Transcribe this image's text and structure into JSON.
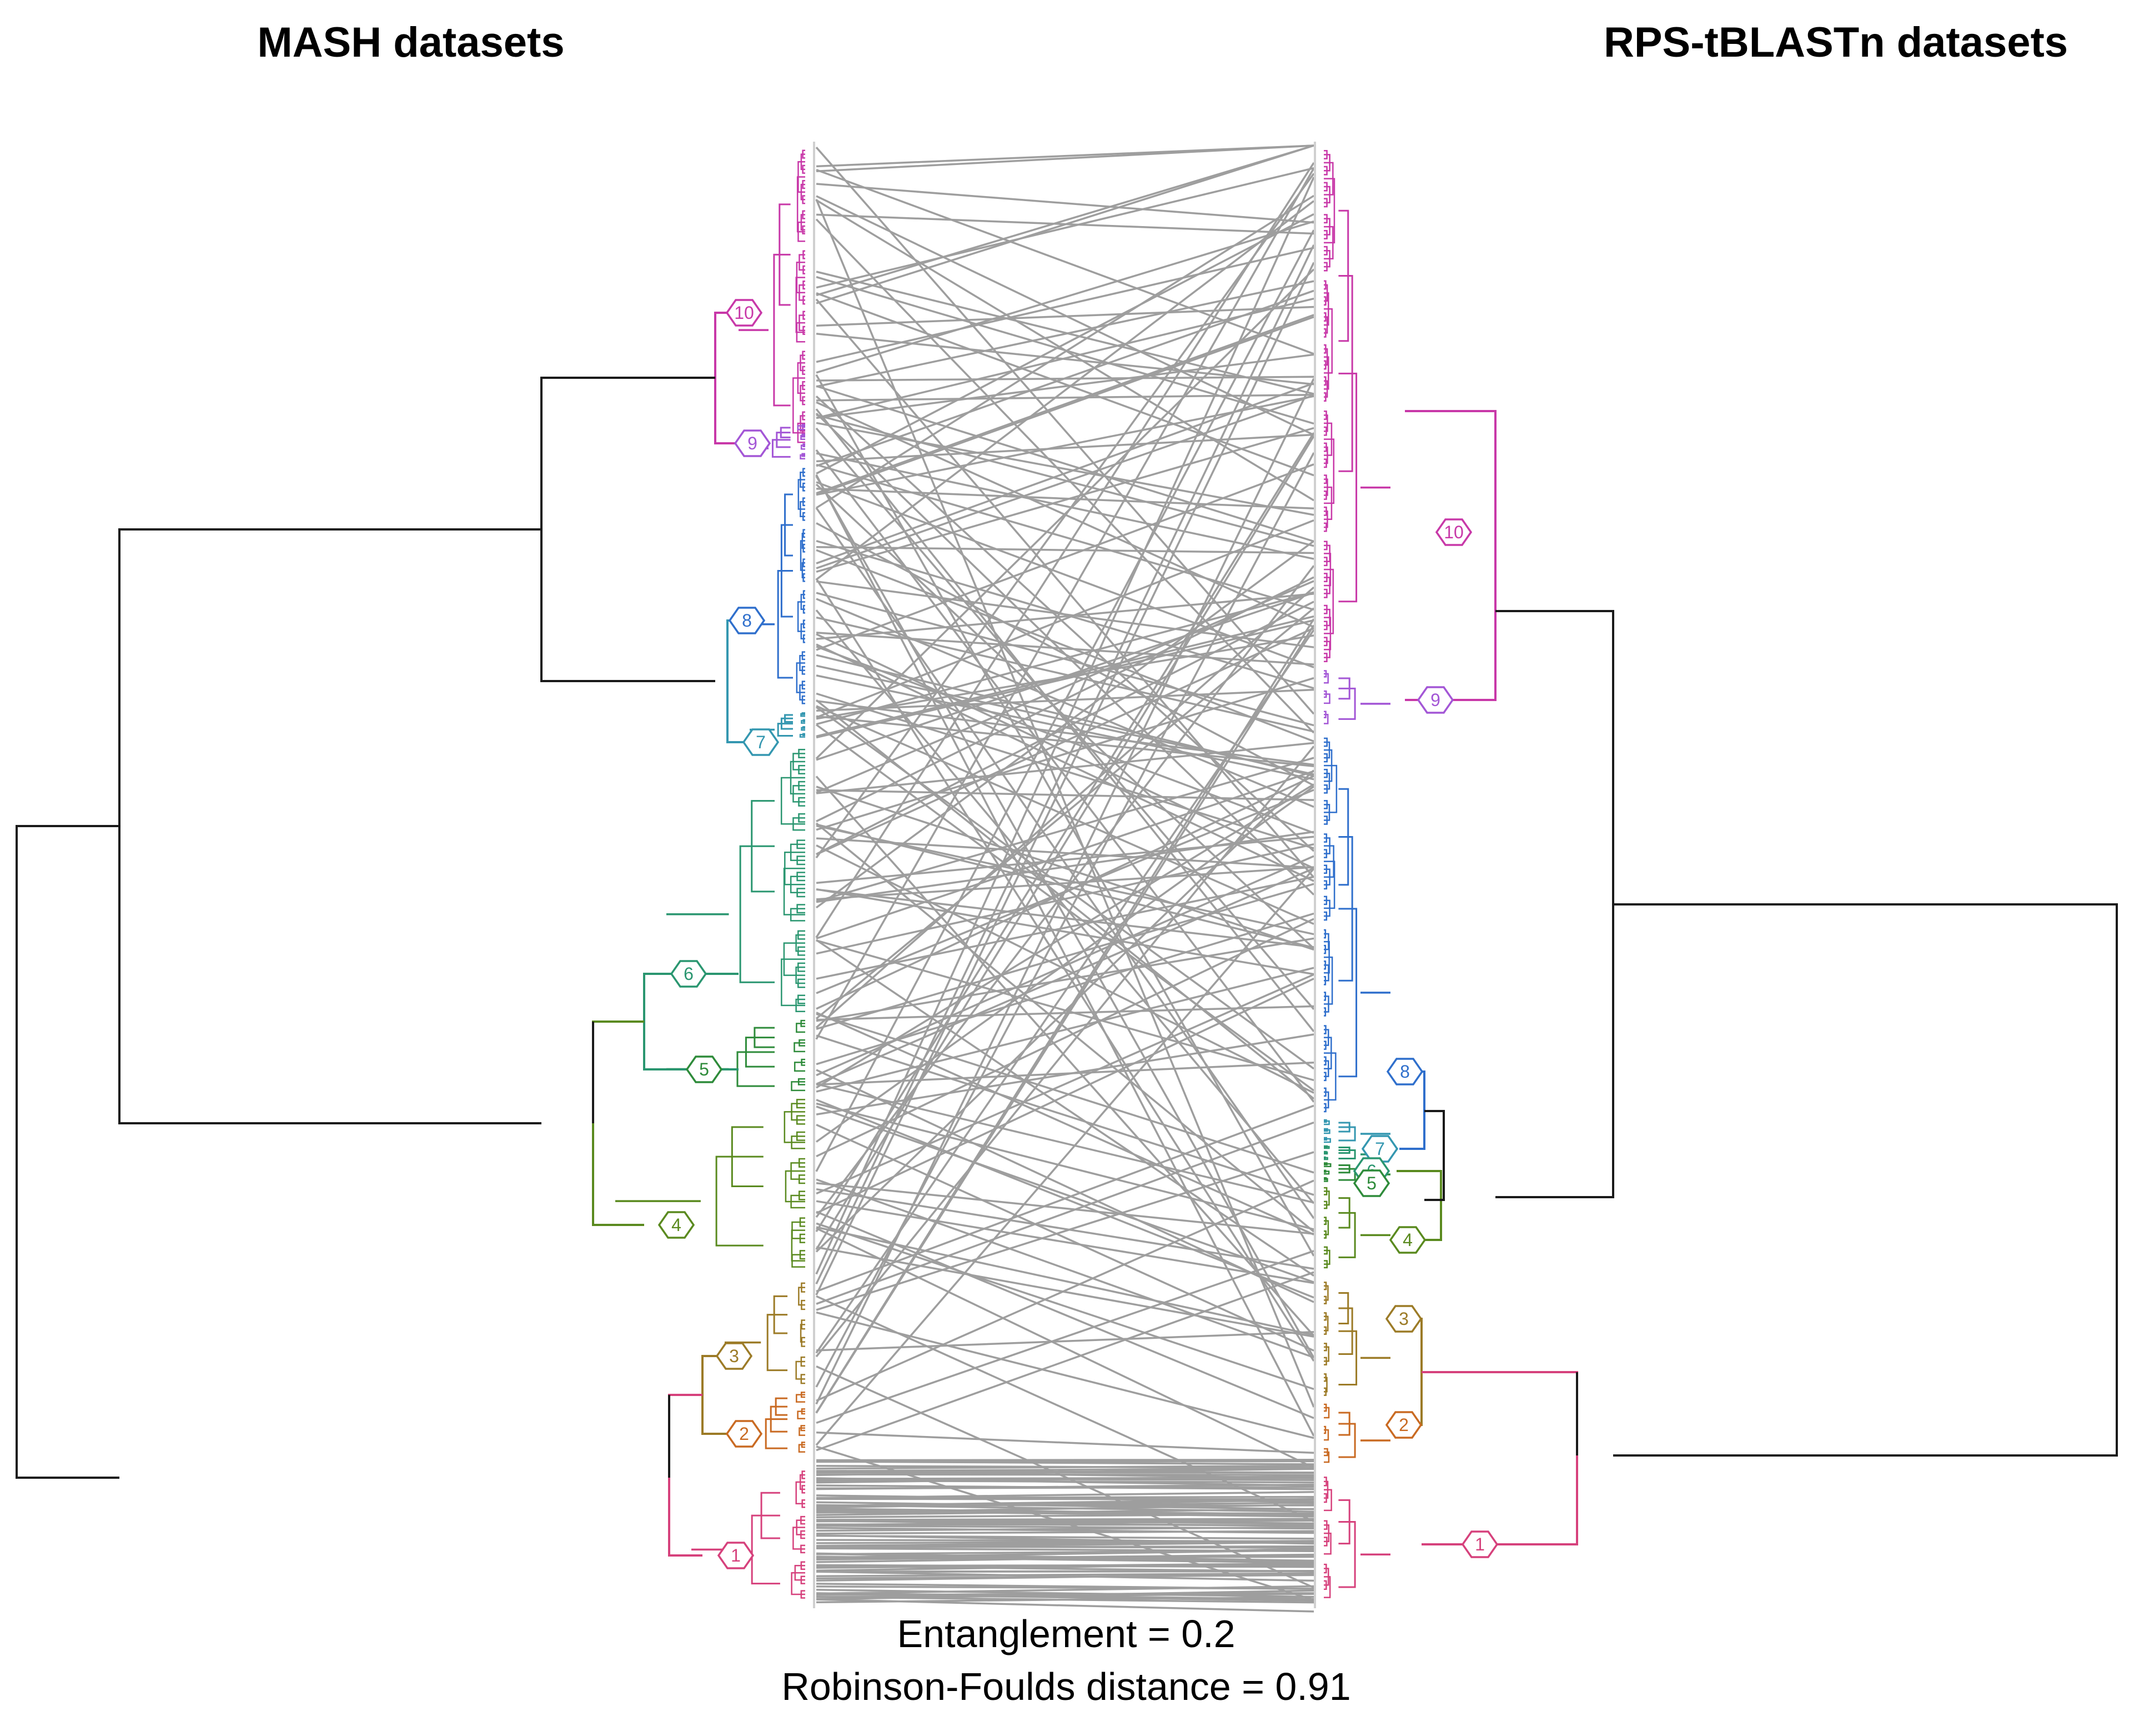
{
  "left_title": "MASH datasets",
  "right_title": "RPS-tBLASTn datasets",
  "entanglement_label": "Entanglement = 0.2",
  "rf_label": "Robinson-Foulds distance = 0.91",
  "colors": {
    "tree": "#1a1a1a",
    "tanglegram_lines": "#9e9e9e",
    "cluster": {
      "1": "#d6417c",
      "2": "#c96a22",
      "3": "#9c7b27",
      "4": "#5a8a1f",
      "5": "#2e8b3a",
      "6": "#2a9670",
      "7": "#3497b0",
      "8": "#2f6fcc",
      "9": "#a356d6",
      "10": "#c838a8"
    }
  },
  "left_tree": {
    "title": "MASH datasets",
    "clusters": [
      {
        "id": "10",
        "label": "10"
      },
      {
        "id": "9",
        "label": "9"
      },
      {
        "id": "8",
        "label": "8"
      },
      {
        "id": "7",
        "label": "7"
      },
      {
        "id": "6",
        "label": "6"
      },
      {
        "id": "5",
        "label": "5"
      },
      {
        "id": "4",
        "label": "4"
      },
      {
        "id": "3",
        "label": "3"
      },
      {
        "id": "2",
        "label": "2"
      },
      {
        "id": "1",
        "label": "1"
      }
    ]
  },
  "right_tree": {
    "title": "RPS-tBLASTn datasets",
    "clusters": [
      {
        "id": "10",
        "label": "10"
      },
      {
        "id": "9",
        "label": "9"
      },
      {
        "id": "8",
        "label": "8"
      },
      {
        "id": "7",
        "label": "7"
      },
      {
        "id": "6",
        "label": "6"
      },
      {
        "id": "5",
        "label": "5"
      },
      {
        "id": "4",
        "label": "4"
      },
      {
        "id": "3",
        "label": "3"
      },
      {
        "id": "2",
        "label": "2"
      },
      {
        "id": "1",
        "label": "1"
      }
    ]
  }
}
